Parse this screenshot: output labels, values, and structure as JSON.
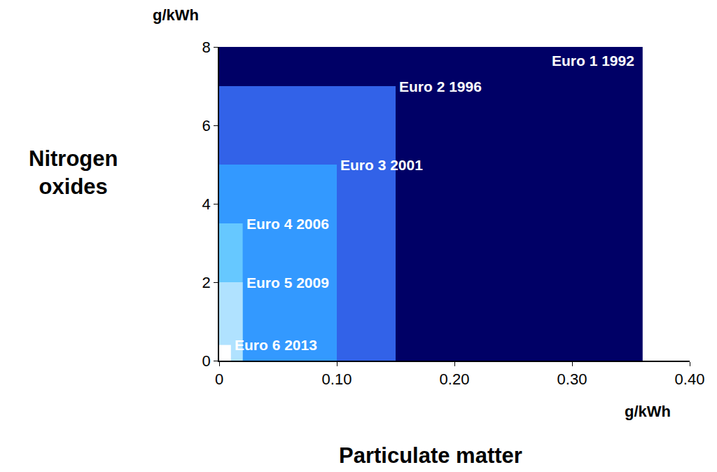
{
  "chart_data": {
    "type": "rectangle",
    "x_label": "Particulate matter",
    "y_label": "Nitrogen oxides",
    "annotations": [
      {
        "text": "g/kWh",
        "axis": "x"
      },
      {
        "text": "g/kWh",
        "axis": "y"
      }
    ],
    "xlim": [
      0,
      0.4
    ],
    "xticks": [
      0,
      {
        "value": 0.1,
        "label": "0.10"
      },
      {
        "value": 0.2,
        "label": "0.20"
      },
      {
        "value": 0.3,
        "label": "0.30"
      },
      {
        "value": 0.4,
        "label": "0.40"
      }
    ],
    "ylim": [
      0,
      8
    ],
    "yticks": [
      0,
      2,
      4,
      6,
      8
    ],
    "grid": false,
    "series": [
      {
        "name": "Euro 1 1992",
        "color": "#000066",
        "x": 0.36,
        "y": 8
      },
      {
        "name": "Euro 2 1996",
        "color": "#3262e8",
        "x": 0.15,
        "y": 7
      },
      {
        "name": "Euro 3 2001",
        "color": "#3399ff",
        "x": 0.1,
        "y": 5
      },
      {
        "name": "Euro 4 2006",
        "color": "#66c8ff",
        "x": 0.02,
        "y": 3.5
      },
      {
        "name": "Euro 5 2009",
        "color": "#b0e2ff",
        "x": 0.02,
        "y": 2
      },
      {
        "name": "Euro 6 2013",
        "color": "#ffffff",
        "x": 0.01,
        "y": 0.4
      }
    ]
  }
}
